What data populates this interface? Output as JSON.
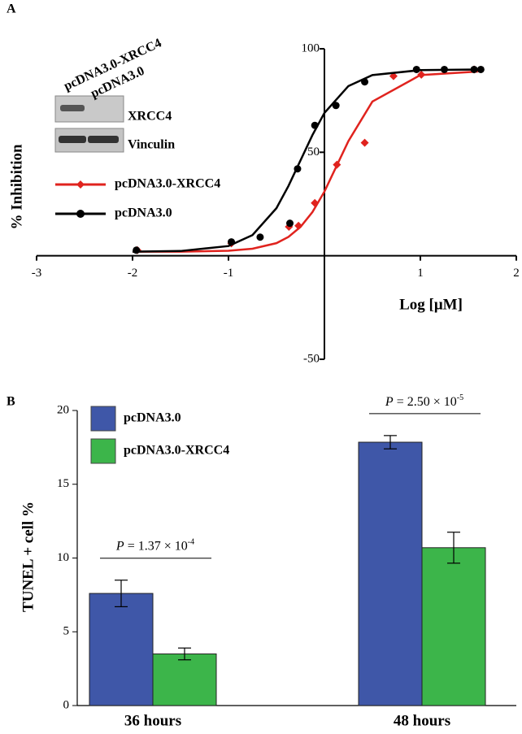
{
  "chart_data": [
    {
      "type": "scatter",
      "label": "A",
      "x_label": "Log [μM]",
      "y_label": "% Inhibition",
      "xlim": [
        -3,
        2
      ],
      "xticks": [
        -3,
        -2,
        -1,
        1,
        2
      ],
      "ylim": [
        -50,
        100
      ],
      "yticks": [
        -50,
        50,
        100
      ],
      "inset": {
        "lanes": [
          "pcDNA3.0-XRCC4",
          "pcDNA3.0"
        ],
        "rows": [
          "XRCC4",
          "Vinculin"
        ]
      },
      "series": [
        {
          "name": "pcDNA3.0-XRCC4",
          "color": "#e0231e",
          "marker": "diamond",
          "x": [
            -1.95,
            -0.97,
            -0.37,
            -0.27,
            -0.1,
            0.13,
            0.42,
            0.72,
            1.01,
            1.56
          ],
          "values": [
            2.7,
            6,
            14,
            14.5,
            25.5,
            44,
            54.6,
            86.8,
            87.5,
            90
          ],
          "fit_x": [
            -2,
            -1.5,
            -1,
            -0.75,
            -0.5,
            -0.375,
            -0.25,
            -0.125,
            0,
            0.25,
            0.5,
            1,
            1.6
          ],
          "fit_values": [
            2,
            2,
            2.4,
            3.4,
            6.1,
            9.1,
            13.9,
            21.1,
            31,
            55.4,
            74.5,
            87.3,
            89
          ]
        },
        {
          "name": "pcDNA3.0",
          "color": "#000000",
          "marker": "circle",
          "x": [
            -1.96,
            -0.97,
            -0.67,
            -0.36,
            -0.28,
            -0.1,
            0.12,
            0.42,
            0.96,
            1.25,
            1.56,
            1.63
          ],
          "values": [
            2.7,
            6.7,
            9,
            15.7,
            42,
            63,
            72.6,
            84,
            90,
            90,
            90,
            90
          ],
          "fit_x": [
            -2,
            -1.5,
            -1,
            -0.75,
            -0.5,
            -0.375,
            -0.25,
            -0.125,
            0,
            0.25,
            0.5,
            1,
            1.6
          ],
          "fit_values": [
            2,
            2.3,
            4.7,
            10,
            23,
            33.7,
            46,
            58.3,
            69,
            82,
            87.3,
            89.7,
            90
          ]
        }
      ]
    },
    {
      "type": "bar",
      "label": "B",
      "y_label": "TUNEL + cell %",
      "categories": [
        "36 hours",
        "48 hours"
      ],
      "ylim": [
        0,
        20
      ],
      "yticks": [
        0,
        5,
        10,
        15,
        20
      ],
      "series": [
        {
          "name": "pcDNA3.0",
          "color": "#3f57a8",
          "values": [
            7.6,
            17.85
          ],
          "errors": [
            0.9,
            0.45
          ]
        },
        {
          "name": "pcDNA3.0-XRCC4",
          "color": "#3cb54a",
          "values": [
            3.5,
            10.7
          ],
          "errors": [
            0.4,
            1.05
          ]
        }
      ],
      "annotations": [
        {
          "prefix": "P",
          "text": " = 1.37 × 10",
          "exponent": "-4"
        },
        {
          "prefix": "P",
          "text": " = 2.50 × 10",
          "exponent": "-5"
        }
      ]
    }
  ]
}
